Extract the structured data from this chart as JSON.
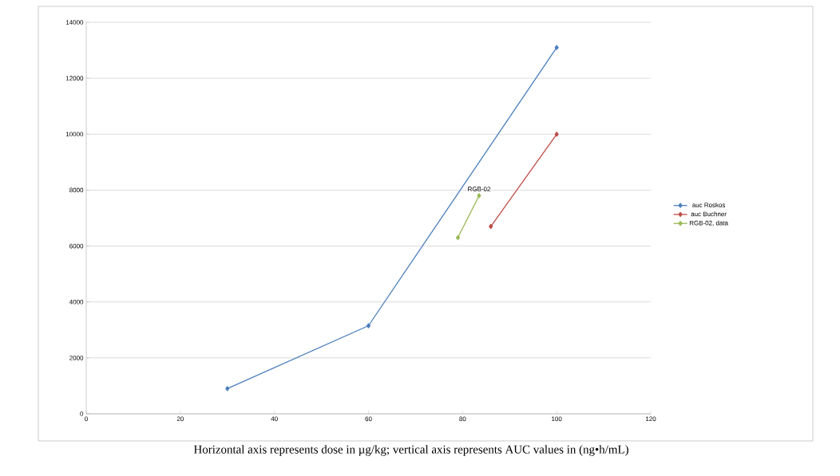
{
  "chart_data": {
    "type": "line",
    "xlim": [
      0,
      120
    ],
    "ylim": [
      0,
      14000
    ],
    "xticks": [
      0,
      20,
      40,
      60,
      80,
      100,
      120
    ],
    "yticks": [
      0,
      2000,
      4000,
      6000,
      8000,
      10000,
      12000,
      14000
    ],
    "grid": "y",
    "legend": "right",
    "marker": "diamond",
    "series": [
      {
        "name": "auc Roskos",
        "color": "#4a7ebb",
        "x": [
          30,
          60,
          100
        ],
        "values": [
          900,
          3150,
          13100
        ]
      },
      {
        "name": "auc Buchner",
        "color": "#be4b48",
        "x": [
          86,
          100
        ],
        "values": [
          6700,
          10000
        ]
      },
      {
        "name": "RGB-02, data",
        "color": "#98b954",
        "x": [
          79,
          83.5
        ],
        "values": [
          6300,
          7800
        ]
      }
    ],
    "annotations": [
      {
        "text": "RGB-02",
        "x": 83.5,
        "y": 7800
      },
      "Horizontal axis represents dose in µg/kg; vertical axis represents AUC values in (ng•h/mL)"
    ]
  }
}
